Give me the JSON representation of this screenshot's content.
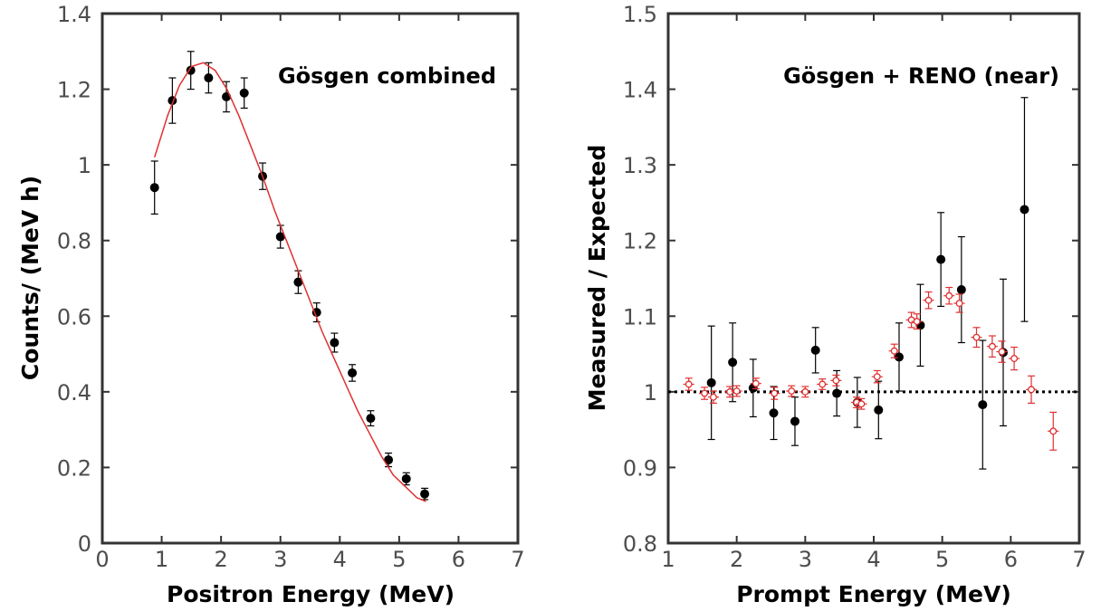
{
  "chart_data": [
    {
      "type": "scatter",
      "title": "Gösgen combined",
      "xlabel": "Positron Energy (MeV)",
      "ylabel": "Counts/ (MeV h)",
      "xlim": [
        0,
        7
      ],
      "ylim": [
        0,
        1.4
      ],
      "xticks": [
        "0",
        "1",
        "2",
        "3",
        "4",
        "5",
        "6",
        "7"
      ],
      "yticks": [
        "0",
        "0.2",
        "0.4",
        "0.6",
        "0.8",
        "1",
        "1.2",
        "1.4"
      ],
      "grid": false,
      "series": [
        {
          "kind": "points",
          "color": "#000000",
          "x": [
            0.88,
            1.18,
            1.49,
            1.79,
            2.09,
            2.39,
            2.7,
            3.0,
            3.3,
            3.61,
            3.91,
            4.21,
            4.52,
            4.82,
            5.12,
            5.43
          ],
          "y": [
            0.94,
            1.17,
            1.25,
            1.23,
            1.18,
            1.19,
            0.97,
            0.81,
            0.69,
            0.61,
            0.53,
            0.45,
            0.33,
            0.22,
            0.17,
            0.13
          ],
          "yerr": [
            0.07,
            0.06,
            0.05,
            0.04,
            0.04,
            0.04,
            0.035,
            0.03,
            0.03,
            0.025,
            0.025,
            0.022,
            0.02,
            0.018,
            0.016,
            0.015
          ]
        },
        {
          "kind": "curve",
          "color": "#e03030",
          "x": [
            0.88,
            1.1,
            1.3,
            1.5,
            1.7,
            1.9,
            2.1,
            2.3,
            2.5,
            2.7,
            2.9,
            3.1,
            3.3,
            3.5,
            3.7,
            3.9,
            4.1,
            4.3,
            4.5,
            4.7,
            4.9,
            5.1,
            5.3,
            5.45
          ],
          "y": [
            1.02,
            1.13,
            1.21,
            1.26,
            1.27,
            1.25,
            1.2,
            1.13,
            1.05,
            0.97,
            0.88,
            0.8,
            0.72,
            0.64,
            0.56,
            0.49,
            0.42,
            0.35,
            0.29,
            0.23,
            0.18,
            0.15,
            0.12,
            0.11
          ]
        }
      ]
    },
    {
      "type": "scatter",
      "title": "Gösgen + RENO (near)",
      "xlabel": "Prompt Energy (MeV)",
      "ylabel": "Measured / Expected",
      "xlim": [
        1,
        7
      ],
      "ylim": [
        0.8,
        1.5
      ],
      "xticks": [
        "1",
        "2",
        "3",
        "4",
        "5",
        "6",
        "7"
      ],
      "yticks": [
        "0.8",
        "0.9",
        "1",
        "1.1",
        "1.2",
        "1.3",
        "1.4",
        "1.5"
      ],
      "grid": false,
      "reference_line": 1.0,
      "series": [
        {
          "kind": "points",
          "color": "#000000",
          "x": [
            1.63,
            1.94,
            2.24,
            2.54,
            2.85,
            3.15,
            3.46,
            3.76,
            4.07,
            4.37,
            4.68,
            4.98,
            5.28,
            5.59,
            5.89,
            6.2
          ],
          "y": [
            1.012,
            1.039,
            1.005,
            0.972,
            0.961,
            1.055,
            0.998,
            0.986,
            0.976,
            1.046,
            1.088,
            1.175,
            1.135,
            0.983,
            1.052,
            1.241
          ],
          "yerr": [
            0.075,
            0.052,
            0.038,
            0.035,
            0.032,
            0.03,
            0.03,
            0.033,
            0.038,
            0.045,
            0.054,
            0.062,
            0.07,
            0.085,
            0.097,
            0.148
          ]
        },
        {
          "kind": "open-points",
          "color": "#e03030",
          "x": [
            1.3,
            1.53,
            1.66,
            1.9,
            2.0,
            2.28,
            2.55,
            2.8,
            3.0,
            3.25,
            3.45,
            3.75,
            3.82,
            4.05,
            4.3,
            4.55,
            4.63,
            4.8,
            5.1,
            5.25,
            5.5,
            5.73,
            5.87,
            6.05,
            6.3,
            6.62
          ],
          "y": [
            1.01,
            0.998,
            0.993,
            1.0,
            1.001,
            1.011,
            0.998,
            1.001,
            1.0,
            1.01,
            1.015,
            0.986,
            0.984,
            1.02,
            1.054,
            1.095,
            1.093,
            1.121,
            1.127,
            1.117,
            1.072,
            1.06,
            1.053,
            1.044,
            1.003,
            0.948
          ],
          "yerr": [
            0.008,
            0.008,
            0.008,
            0.007,
            0.007,
            0.007,
            0.008,
            0.007,
            0.007,
            0.007,
            0.007,
            0.007,
            0.007,
            0.008,
            0.009,
            0.01,
            0.01,
            0.011,
            0.011,
            0.012,
            0.013,
            0.014,
            0.014,
            0.015,
            0.018,
            0.025
          ],
          "xerr": [
            0.08,
            0.08,
            0.08,
            0.08,
            0.08,
            0.08,
            0.08,
            0.08,
            0.08,
            0.08,
            0.08,
            0.08,
            0.08,
            0.08,
            0.08,
            0.08,
            0.08,
            0.08,
            0.08,
            0.08,
            0.08,
            0.08,
            0.08,
            0.08,
            0.08,
            0.08
          ]
        }
      ]
    }
  ]
}
